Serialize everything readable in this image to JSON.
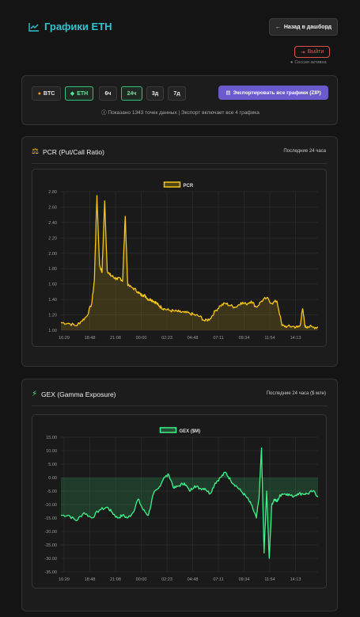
{
  "header": {
    "title": "Графики ETH",
    "back_label": "Назад в дашборд",
    "logout_label": "Выйти",
    "session_status": "Сессия активна"
  },
  "toolbar": {
    "assets": [
      {
        "label": "BTC",
        "active": false
      },
      {
        "label": "ETH",
        "active": true
      }
    ],
    "timeframes": [
      {
        "label": "6ч",
        "active": false
      },
      {
        "label": "24ч",
        "active": true
      },
      {
        "label": "3д",
        "active": false
      },
      {
        "label": "7д",
        "active": false
      }
    ],
    "export_label": "Экспортировать все графики (ZIP)",
    "info_text": "Показано 1343 точек данных | Экспорт включает все 4 графика"
  },
  "colors": {
    "pcr_line": "#f5c518",
    "gex_line": "#3ef28a",
    "accent_title": "#2ec4cf"
  },
  "charts": {
    "pcr": {
      "title": "PCR (Put/Call Ratio)",
      "range_label": "Последние 24 часа",
      "icon": "scale-icon"
    },
    "gex": {
      "title": "GEX (Gamma Exposure)",
      "range_label": "Последние 24 часа ($ млн)",
      "icon": "lightning-icon"
    }
  },
  "chart_data": [
    {
      "type": "line",
      "title": "",
      "legend": [
        "PCR"
      ],
      "legend_position": "top",
      "x_tick_labels": [
        "16:29",
        "18:48",
        "21:08",
        "00:00",
        "02:23",
        "04:48",
        "07:11",
        "09:34",
        "11:54",
        "14:13"
      ],
      "y_tick_labels": [
        "1.00",
        "1.20",
        "1.40",
        "1.60",
        "1.80",
        "2.00",
        "2.20",
        "2.40",
        "2.60",
        "2.80"
      ],
      "ylim": [
        1.0,
        2.8
      ],
      "grid": true,
      "fill": true,
      "series": [
        {
          "name": "PCR",
          "x_index": [
            0,
            3,
            6,
            8,
            10,
            12,
            13,
            14,
            15,
            16,
            17,
            18,
            19,
            20,
            21,
            22,
            23,
            24,
            25,
            26,
            28,
            30,
            31,
            32,
            33,
            34,
            35,
            36,
            37,
            38,
            39,
            40,
            42,
            44,
            46,
            48,
            50,
            52,
            54,
            56,
            58,
            60,
            62,
            64,
            66,
            68,
            70,
            72,
            74,
            76,
            78,
            80,
            82,
            84,
            86,
            88,
            90,
            92,
            93,
            94,
            95,
            96,
            98,
            100
          ],
          "values": [
            1.1,
            1.09,
            1.06,
            1.12,
            1.18,
            1.35,
            1.65,
            2.75,
            1.85,
            1.75,
            2.68,
            1.78,
            1.72,
            1.7,
            1.68,
            1.66,
            1.68,
            1.64,
            2.48,
            1.58,
            1.55,
            1.5,
            1.46,
            1.46,
            1.44,
            1.4,
            1.4,
            1.38,
            1.36,
            1.32,
            1.3,
            1.28,
            1.26,
            1.25,
            1.24,
            1.23,
            1.22,
            1.2,
            1.18,
            1.12,
            1.15,
            1.25,
            1.32,
            1.35,
            1.32,
            1.3,
            1.36,
            1.34,
            1.38,
            1.3,
            1.38,
            1.42,
            1.35,
            1.38,
            1.06,
            1.05,
            1.05,
            1.04,
            1.06,
            1.28,
            1.04,
            1.05,
            1.04,
            1.04
          ]
        }
      ]
    },
    {
      "type": "line",
      "title": "",
      "legend": [
        "GEX ($M)"
      ],
      "legend_position": "top",
      "x_tick_labels": [
        "16:29",
        "18:48",
        "21:08",
        "00:00",
        "02:23",
        "04:48",
        "07:11",
        "09:34",
        "11:54",
        "14:13"
      ],
      "y_tick_labels": [
        "15.00",
        "10.00",
        "5.00",
        "0.00",
        "-5.00",
        "-10.00",
        "-15.00",
        "-20.00",
        "-25.00",
        "-30.00",
        "-35.00"
      ],
      "ylim": [
        -35,
        15
      ],
      "grid": true,
      "fill": true,
      "series": [
        {
          "name": "GEX ($M)",
          "x_index": [
            0,
            3,
            6,
            9,
            12,
            15,
            18,
            20,
            22,
            24,
            26,
            28,
            30,
            32,
            34,
            36,
            38,
            40,
            42,
            44,
            46,
            48,
            50,
            52,
            54,
            56,
            58,
            60,
            62,
            64,
            66,
            68,
            70,
            72,
            74,
            76,
            77,
            78,
            79,
            80,
            81,
            82,
            83,
            84,
            85,
            86,
            88,
            90,
            92,
            94,
            96,
            98,
            100
          ],
          "values": [
            -14,
            -14,
            -16,
            -13,
            -15,
            -12,
            -11,
            -13,
            -15,
            -14,
            -15,
            -13,
            -8,
            -12,
            -14,
            -6,
            -4,
            0,
            1,
            -4,
            -3,
            -2,
            -5,
            -3,
            -4,
            -4,
            -6,
            -2,
            0,
            2,
            -1,
            -3,
            -5,
            -7,
            -10,
            -15,
            -8,
            11,
            -28,
            -5,
            -30,
            -10,
            -8,
            -9,
            -7,
            -6,
            -6,
            -7,
            -6,
            -6,
            -6,
            -5,
            -7
          ]
        }
      ]
    }
  ]
}
